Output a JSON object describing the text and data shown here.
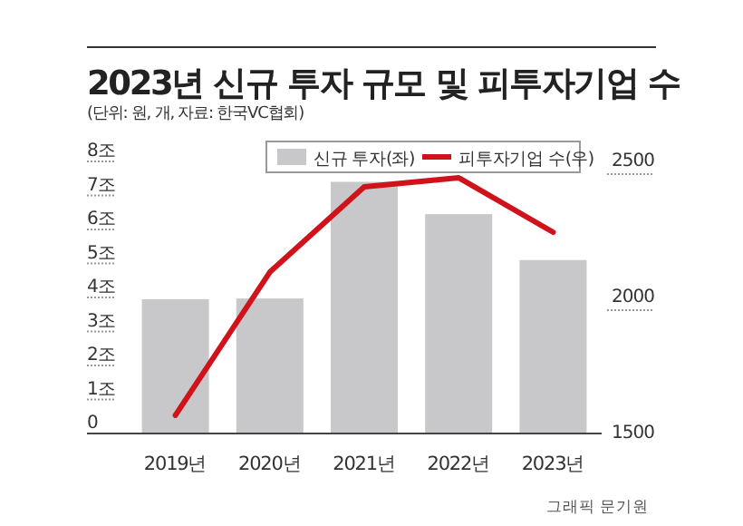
{
  "chart_data": {
    "type": "bar",
    "title": "2023년 신규 투자 규모 및 피투자기업 수",
    "subtitle": "(단위: 원, 개, 자료: 한국VC협회)",
    "categories": [
      "2019년",
      "2020년",
      "2021년",
      "2022년",
      "2023년"
    ],
    "series": [
      {
        "name": "신규 투자(좌)",
        "color": "#c8c8ca",
        "values": [
          3.95,
          3.97,
          7.4,
          6.45,
          5.1
        ]
      },
      {
        "name": "피투자기업 수(우)",
        "type": "line",
        "axis": "y2",
        "color": "#d0121b",
        "values": [
          1567,
          2093,
          2407,
          2440,
          2240
        ]
      }
    ],
    "ylim": [
      0,
      8
    ],
    "yticks": [
      0,
      {
        "value": 1,
        "label": "1조"
      },
      {
        "value": 2,
        "label": "2조"
      },
      {
        "value": 3,
        "label": "3조"
      },
      {
        "value": 4,
        "label": "4조"
      },
      {
        "value": 5,
        "label": "5조"
      },
      {
        "value": 6,
        "label": "6조"
      },
      {
        "value": 7,
        "label": "7조"
      },
      {
        "value": 8,
        "label": "8조"
      }
    ],
    "y2lim": [
      1500,
      2500
    ],
    "y2ticks": [
      1500,
      2000,
      2500
    ],
    "legend": "top right",
    "grid": false,
    "annotations": [
      "그래픽 문기원"
    ]
  }
}
